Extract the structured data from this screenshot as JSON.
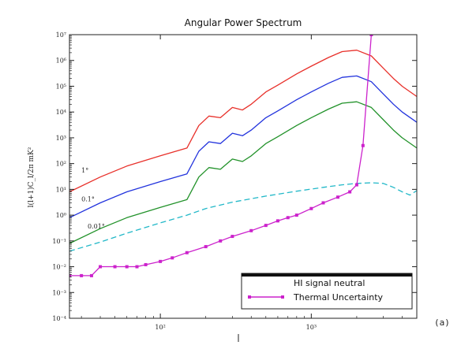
{
  "chart_data": {
    "type": "line",
    "title": "Angular Power Spectrum",
    "xlabel": "",
    "ylabel": "l(l+1)C_l/2π mK²",
    "x_scale": "log",
    "y_scale": "log",
    "xlim": [
      25,
      5000
    ],
    "ylim": [
      0.0001,
      10000000
    ],
    "x_ticks": [
      100,
      1000
    ],
    "x_tick_labels": [
      "10²",
      "10³"
    ],
    "y_ticks": [
      0.0001,
      0.001,
      0.01,
      0.1,
      1,
      10,
      100,
      1000,
      10000,
      100000,
      1000000,
      10000000
    ],
    "y_tick_labels": [
      "10⁻⁴",
      "10⁻³",
      "10⁻²",
      "10⁻¹",
      "10⁰",
      "10¹",
      "10²",
      "10³",
      "10⁴",
      "10⁵",
      "10⁶",
      "10⁷"
    ],
    "grid": false,
    "legend_position": "bottom-right",
    "legend": [
      {
        "label": "HI signal neutral",
        "color": "#000000",
        "marker": "none"
      },
      {
        "label": "Thermal Uncertainty",
        "color": "#cc22cc",
        "marker": "square"
      }
    ],
    "annotations": [
      {
        "text": "1°",
        "x": 30,
        "y": 45
      },
      {
        "text": "0.1°",
        "x": 30,
        "y": 3.5
      },
      {
        "text": "0.01°",
        "x": 33,
        "y": 0.3
      }
    ],
    "panel_label": "(a)",
    "series": [
      {
        "name": "1°",
        "color": "#e8302a",
        "style": "solid",
        "x": [
          25,
          40,
          60,
          100,
          150,
          180,
          210,
          250,
          300,
          350,
          400,
          500,
          600,
          800,
          1000,
          1300,
          1600,
          2000,
          2500,
          3000,
          3500,
          4000,
          5000
        ],
        "y": [
          8,
          30,
          80,
          200,
          400,
          3000,
          7000,
          6000,
          15000,
          12000,
          20000,
          60000,
          110000,
          300000,
          600000,
          1300000,
          2200000,
          2500000,
          1500000,
          500000,
          200000,
          100000,
          40000
        ]
      },
      {
        "name": "0.1°",
        "color": "#2233dd",
        "style": "solid",
        "x": [
          25,
          40,
          60,
          100,
          150,
          180,
          210,
          250,
          300,
          350,
          400,
          500,
          600,
          800,
          1000,
          1300,
          1600,
          2000,
          2500,
          3000,
          3500,
          4000,
          5000
        ],
        "y": [
          0.8,
          3,
          8,
          20,
          40,
          300,
          700,
          600,
          1500,
          1200,
          2000,
          6000,
          11000,
          30000,
          60000,
          130000,
          220000,
          250000,
          150000,
          50000,
          20000,
          10000,
          4000
        ]
      },
      {
        "name": "0.01°",
        "color": "#22922a",
        "style": "solid",
        "x": [
          25,
          40,
          60,
          100,
          150,
          180,
          210,
          250,
          300,
          350,
          400,
          500,
          600,
          800,
          1000,
          1300,
          1600,
          2000,
          2500,
          3000,
          3500,
          4000,
          5000
        ],
        "y": [
          0.08,
          0.3,
          0.8,
          2,
          4,
          30,
          70,
          60,
          150,
          120,
          200,
          600,
          1100,
          3000,
          6000,
          13000,
          22000,
          25000,
          15000,
          5000,
          2000,
          1000,
          400
        ]
      },
      {
        "name": "",
        "color": "#22b8c8",
        "style": "dashed",
        "x": [
          25,
          40,
          60,
          100,
          150,
          200,
          300,
          500,
          800,
          1200,
          1600,
          2000,
          2500,
          3000,
          3500,
          4000,
          4500,
          5000
        ],
        "y": [
          0.04,
          0.09,
          0.2,
          0.5,
          1,
          1.8,
          3.2,
          5.5,
          8.5,
          12,
          15,
          17,
          18,
          17,
          12,
          8,
          6,
          9
        ]
      },
      {
        "name": "Thermal Uncertainty",
        "color": "#cc22cc",
        "style": "solid",
        "marker": "square",
        "x": [
          25,
          30,
          35,
          40,
          50,
          60,
          70,
          80,
          100,
          120,
          150,
          200,
          250,
          300,
          400,
          500,
          600,
          700,
          800,
          1000,
          1200,
          1500,
          1800,
          2000,
          2200,
          2500
        ],
        "y": [
          0.0045,
          0.0045,
          0.0045,
          0.01,
          0.01,
          0.01,
          0.01,
          0.012,
          0.016,
          0.022,
          0.035,
          0.06,
          0.1,
          0.15,
          0.25,
          0.4,
          0.6,
          0.8,
          1.0,
          1.8,
          3.0,
          5.0,
          8.0,
          15,
          500,
          10000000
        ]
      }
    ]
  }
}
